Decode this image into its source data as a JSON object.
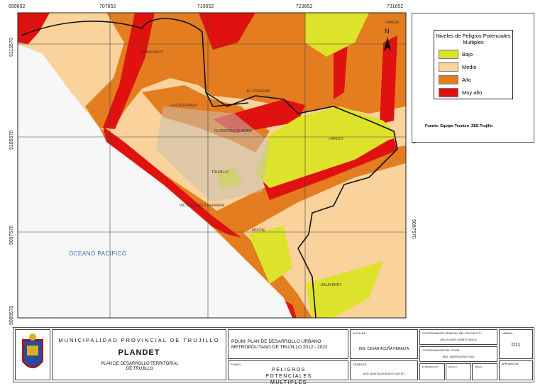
{
  "map": {
    "top_coords": [
      "699652",
      "707652",
      "715652",
      "723652",
      "731652"
    ],
    "side_coords": [
      "9113570",
      "9105570",
      "9097570",
      "9089570"
    ],
    "north": "N",
    "places": [
      "HUANCHACO",
      "EL PORVENIR",
      "LA ESPERANZA",
      "FLORENCIA DE MORA",
      "LAREDO",
      "TRUJILLO",
      "VICTOR LARCO HERRERA",
      "MOCHE",
      "SALAVERRY",
      "SANGAL"
    ],
    "ocean": "OCEANO PACIFICO"
  },
  "legend": {
    "title": "Niveles de Peligros Potenciales Multiples",
    "items": [
      {
        "label": "Bajo",
        "color": "#dde22b"
      },
      {
        "label": "Medio",
        "color": "#f9d29c"
      },
      {
        "label": "Alto",
        "color": "#e47d1f"
      },
      {
        "label": "Muy alto",
        "color": "#e0120f"
      }
    ],
    "source": "Fuente: Equipo Tecnico  ZEE Trujillo"
  },
  "title_block": {
    "institution": "MUNICIPALIDAD PROVINCIAL DE TRUJILLO",
    "program": "PLANDET",
    "program_name": "PLAN DE DESARROLLO TERRITORIAL DE TRUJILLO",
    "plan": "PDUM: PLAN DE DESARROLLO URBANO METROPOLITANO DE TRUJILLO 2012 - 2022",
    "plano_label": "PLANO:",
    "plano": "PELIGROS POTENCIALES MULTIPLES",
    "alcalde_label": "ALCALDE:",
    "alcalde": "ING. CESAR ACUÑA PERALTA",
    "gerente_label": "GERENTE:",
    "gerente": "ARQ. MARITZA HURTADO CASTRO",
    "coord_general_label": "COORDINADOR GENERAL DEL PROYECTO:",
    "coord_general": "ARQ. ALVARO UGARTE UBILLA",
    "coord_pdum_label": "COORDINADOR DEL PDUM:",
    "coord_pdum": "ARQ. JAVIER ALFARO DIAZ",
    "elaboracion_label": "ELABORACION:",
    "escala_label": "ESCALA:",
    "fecha_label": "FECHA:",
    "lamina_label": "LAMINA:",
    "lamina": "D11",
    "aprobacion_label": "APROBACION:"
  }
}
